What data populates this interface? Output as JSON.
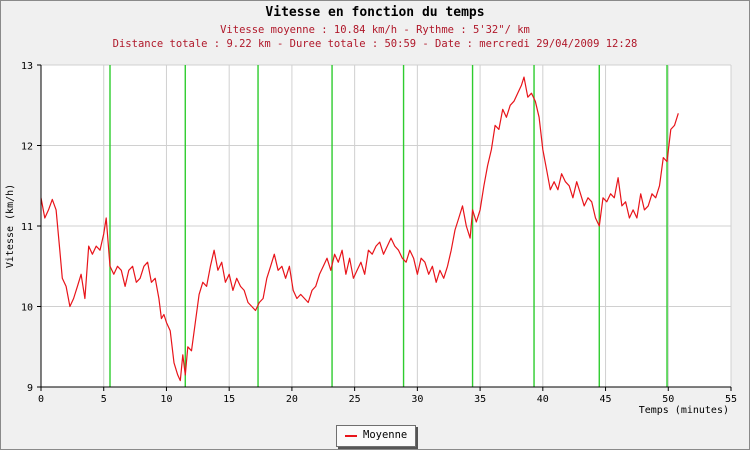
{
  "chart_data": {
    "type": "line",
    "title": "Vitesse en fonction du temps",
    "subtitle_lines": [
      "Vitesse moyenne : 10.84 km/h - Rythme : 5'32\"/ km",
      "Distance totale : 9.22 km - Duree totale : 50:59 - Date : mercredi 29/04/2009 12:28"
    ],
    "xlabel": "Temps (minutes)",
    "ylabel": "Vitesse (km/h)",
    "xlim": [
      0,
      55
    ],
    "ylim": [
      9,
      13
    ],
    "xticks": [
      0,
      5,
      10,
      15,
      20,
      25,
      30,
      35,
      40,
      45,
      50,
      55
    ],
    "yticks": [
      9,
      10,
      11,
      12,
      13
    ],
    "grid": true,
    "legend": {
      "placement": "bottom-center",
      "entries": [
        "Moyenne"
      ]
    },
    "colors": {
      "series": "#e8141a",
      "markers": "#2ecc2e",
      "grid": "#d0d0d0"
    },
    "vertical_markers": [
      5.5,
      11.5,
      17.3,
      23.2,
      28.9,
      34.4,
      39.3,
      44.5,
      49.9
    ],
    "series": [
      {
        "name": "Moyenne",
        "points": [
          [
            0.0,
            11.35
          ],
          [
            0.3,
            11.1
          ],
          [
            0.6,
            11.2
          ],
          [
            0.9,
            11.33
          ],
          [
            1.2,
            11.2
          ],
          [
            1.5,
            10.7
          ],
          [
            1.7,
            10.35
          ],
          [
            2.0,
            10.25
          ],
          [
            2.3,
            10.0
          ],
          [
            2.6,
            10.1
          ],
          [
            2.9,
            10.25
          ],
          [
            3.2,
            10.4
          ],
          [
            3.5,
            10.1
          ],
          [
            3.8,
            10.75
          ],
          [
            4.1,
            10.65
          ],
          [
            4.4,
            10.75
          ],
          [
            4.7,
            10.7
          ],
          [
            5.0,
            10.9
          ],
          [
            5.2,
            11.1
          ],
          [
            5.5,
            10.5
          ],
          [
            5.8,
            10.4
          ],
          [
            6.1,
            10.5
          ],
          [
            6.4,
            10.45
          ],
          [
            6.7,
            10.25
          ],
          [
            7.0,
            10.45
          ],
          [
            7.3,
            10.5
          ],
          [
            7.6,
            10.3
          ],
          [
            7.9,
            10.35
          ],
          [
            8.2,
            10.5
          ],
          [
            8.5,
            10.55
          ],
          [
            8.8,
            10.3
          ],
          [
            9.1,
            10.35
          ],
          [
            9.4,
            10.1
          ],
          [
            9.6,
            9.85
          ],
          [
            9.8,
            9.9
          ],
          [
            10.0,
            9.8
          ],
          [
            10.3,
            9.7
          ],
          [
            10.6,
            9.3
          ],
          [
            10.9,
            9.15
          ],
          [
            11.1,
            9.08
          ],
          [
            11.3,
            9.4
          ],
          [
            11.5,
            9.15
          ],
          [
            11.7,
            9.5
          ],
          [
            12.0,
            9.45
          ],
          [
            12.3,
            9.8
          ],
          [
            12.6,
            10.15
          ],
          [
            12.9,
            10.3
          ],
          [
            13.2,
            10.25
          ],
          [
            13.5,
            10.5
          ],
          [
            13.8,
            10.7
          ],
          [
            14.1,
            10.45
          ],
          [
            14.4,
            10.55
          ],
          [
            14.7,
            10.3
          ],
          [
            15.0,
            10.4
          ],
          [
            15.3,
            10.2
          ],
          [
            15.6,
            10.35
          ],
          [
            15.9,
            10.25
          ],
          [
            16.2,
            10.2
          ],
          [
            16.5,
            10.05
          ],
          [
            16.8,
            10.0
          ],
          [
            17.1,
            9.95
          ],
          [
            17.4,
            10.05
          ],
          [
            17.7,
            10.1
          ],
          [
            18.0,
            10.35
          ],
          [
            18.3,
            10.5
          ],
          [
            18.6,
            10.65
          ],
          [
            18.9,
            10.45
          ],
          [
            19.2,
            10.5
          ],
          [
            19.5,
            10.35
          ],
          [
            19.8,
            10.5
          ],
          [
            20.1,
            10.2
          ],
          [
            20.4,
            10.1
          ],
          [
            20.7,
            10.15
          ],
          [
            21.0,
            10.1
          ],
          [
            21.3,
            10.05
          ],
          [
            21.6,
            10.2
          ],
          [
            21.9,
            10.25
          ],
          [
            22.2,
            10.4
          ],
          [
            22.5,
            10.5
          ],
          [
            22.8,
            10.6
          ],
          [
            23.1,
            10.45
          ],
          [
            23.4,
            10.65
          ],
          [
            23.7,
            10.55
          ],
          [
            24.0,
            10.7
          ],
          [
            24.3,
            10.4
          ],
          [
            24.6,
            10.6
          ],
          [
            24.9,
            10.35
          ],
          [
            25.2,
            10.45
          ],
          [
            25.5,
            10.55
          ],
          [
            25.8,
            10.4
          ],
          [
            26.1,
            10.7
          ],
          [
            26.4,
            10.65
          ],
          [
            26.7,
            10.75
          ],
          [
            27.0,
            10.8
          ],
          [
            27.3,
            10.65
          ],
          [
            27.6,
            10.75
          ],
          [
            27.9,
            10.85
          ],
          [
            28.2,
            10.75
          ],
          [
            28.5,
            10.7
          ],
          [
            28.8,
            10.6
          ],
          [
            29.1,
            10.55
          ],
          [
            29.4,
            10.7
          ],
          [
            29.7,
            10.6
          ],
          [
            30.0,
            10.4
          ],
          [
            30.3,
            10.6
          ],
          [
            30.6,
            10.55
          ],
          [
            30.9,
            10.4
          ],
          [
            31.2,
            10.5
          ],
          [
            31.5,
            10.3
          ],
          [
            31.8,
            10.45
          ],
          [
            32.1,
            10.35
          ],
          [
            32.4,
            10.5
          ],
          [
            32.7,
            10.7
          ],
          [
            33.0,
            10.95
          ],
          [
            33.3,
            11.1
          ],
          [
            33.6,
            11.25
          ],
          [
            33.9,
            11.0
          ],
          [
            34.2,
            10.85
          ],
          [
            34.4,
            11.2
          ],
          [
            34.7,
            11.05
          ],
          [
            35.0,
            11.2
          ],
          [
            35.3,
            11.5
          ],
          [
            35.6,
            11.75
          ],
          [
            35.9,
            11.95
          ],
          [
            36.2,
            12.25
          ],
          [
            36.5,
            12.2
          ],
          [
            36.8,
            12.45
          ],
          [
            37.1,
            12.35
          ],
          [
            37.4,
            12.5
          ],
          [
            37.7,
            12.55
          ],
          [
            38.0,
            12.65
          ],
          [
            38.3,
            12.75
          ],
          [
            38.5,
            12.85
          ],
          [
            38.8,
            12.6
          ],
          [
            39.1,
            12.65
          ],
          [
            39.4,
            12.55
          ],
          [
            39.7,
            12.35
          ],
          [
            40.0,
            11.95
          ],
          [
            40.3,
            11.7
          ],
          [
            40.6,
            11.45
          ],
          [
            40.9,
            11.55
          ],
          [
            41.2,
            11.45
          ],
          [
            41.5,
            11.65
          ],
          [
            41.8,
            11.55
          ],
          [
            42.1,
            11.5
          ],
          [
            42.4,
            11.35
          ],
          [
            42.7,
            11.55
          ],
          [
            43.0,
            11.4
          ],
          [
            43.3,
            11.25
          ],
          [
            43.6,
            11.35
          ],
          [
            43.9,
            11.3
          ],
          [
            44.2,
            11.1
          ],
          [
            44.5,
            11.0
          ],
          [
            44.8,
            11.35
          ],
          [
            45.1,
            11.3
          ],
          [
            45.4,
            11.4
          ],
          [
            45.7,
            11.35
          ],
          [
            46.0,
            11.6
          ],
          [
            46.3,
            11.25
          ],
          [
            46.6,
            11.3
          ],
          [
            46.9,
            11.1
          ],
          [
            47.2,
            11.2
          ],
          [
            47.5,
            11.1
          ],
          [
            47.8,
            11.4
          ],
          [
            48.1,
            11.2
          ],
          [
            48.4,
            11.25
          ],
          [
            48.7,
            11.4
          ],
          [
            49.0,
            11.35
          ],
          [
            49.3,
            11.5
          ],
          [
            49.6,
            11.85
          ],
          [
            49.9,
            11.8
          ],
          [
            50.2,
            12.2
          ],
          [
            50.5,
            12.25
          ],
          [
            50.8,
            12.4
          ]
        ]
      }
    ]
  }
}
